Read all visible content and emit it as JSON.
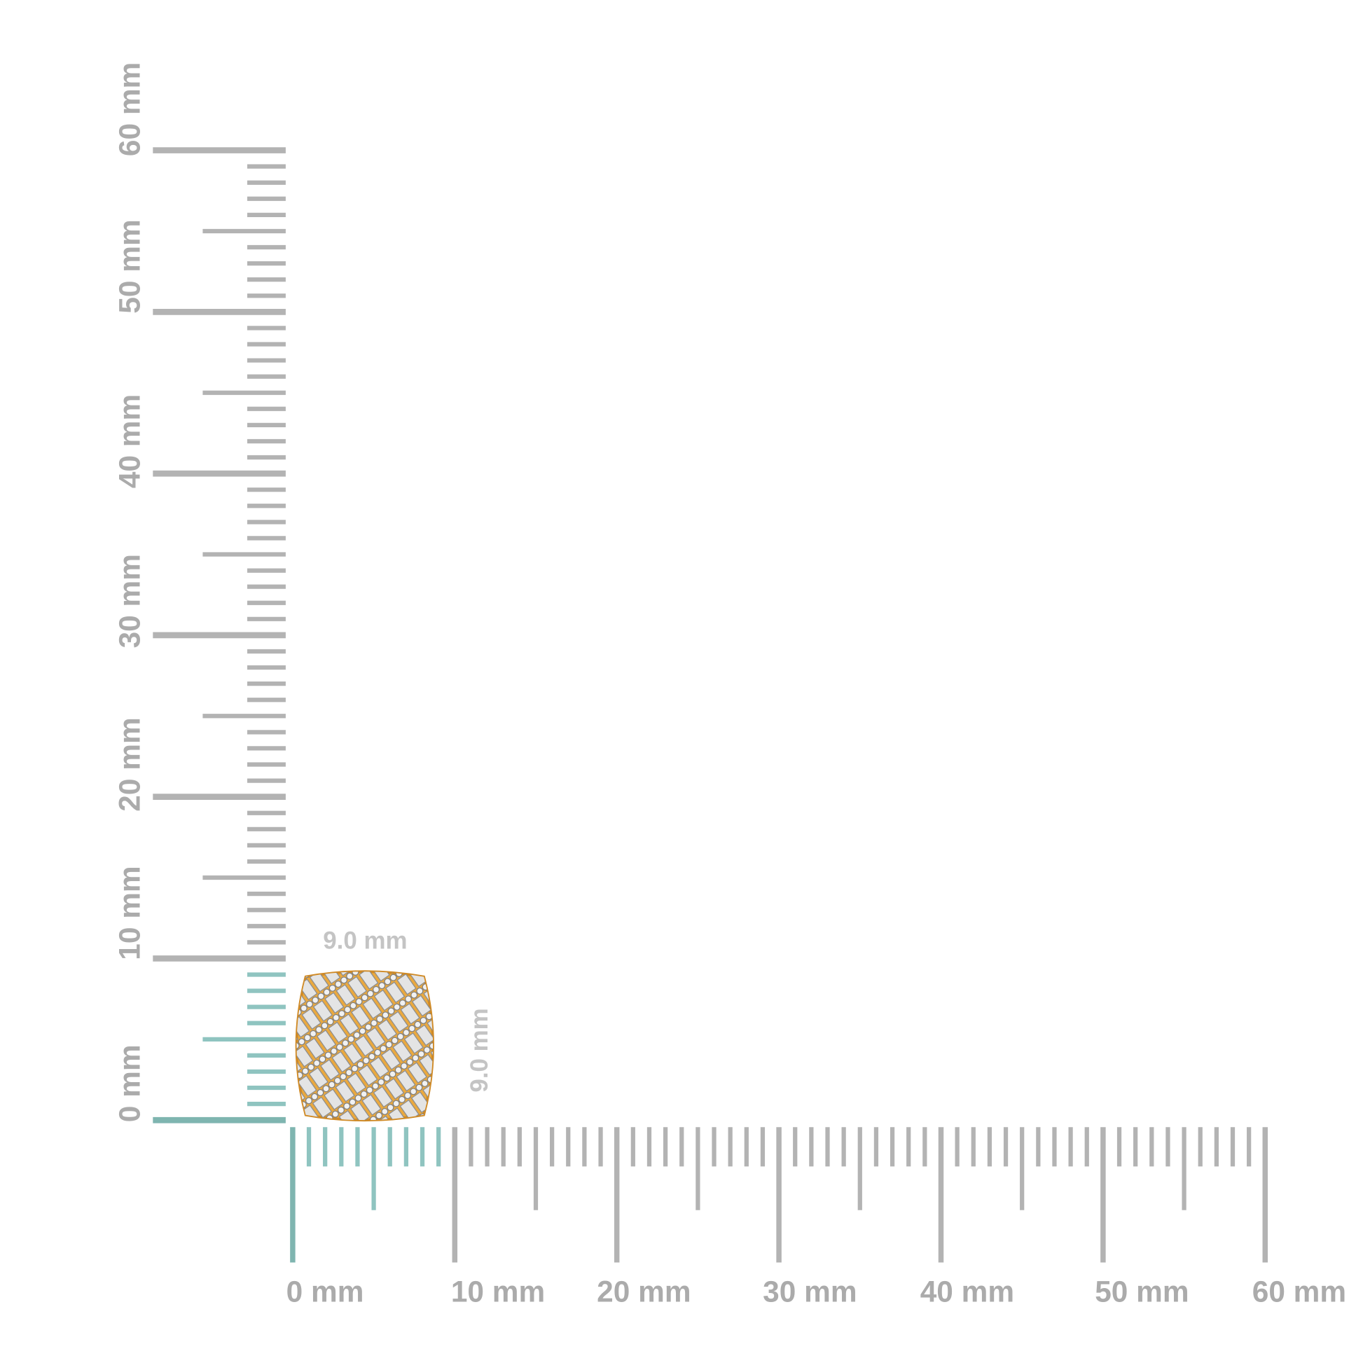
{
  "vertical_ruler": {
    "labels": [
      "0 mm",
      "10 mm",
      "20 mm",
      "30 mm",
      "40 mm",
      "50 mm",
      "60 mm"
    ]
  },
  "horizontal_ruler": {
    "labels": [
      "0 mm",
      "10 mm",
      "20 mm",
      "30 mm",
      "40 mm",
      "50 mm",
      "60 mm"
    ]
  },
  "width_label": "9.0 mm",
  "height_label": "9.0 mm"
}
